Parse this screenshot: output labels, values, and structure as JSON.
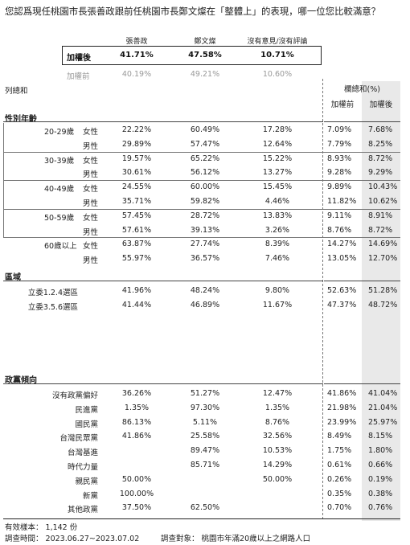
{
  "question": "您認爲現任桃園市長張善政跟前任桃園市長鄭文燦在「整體上」的表現，哪一位您比較滿意？",
  "columns": [
    "張善政",
    "鄭文燦",
    "沒有意見/沒有評論"
  ],
  "weighted": {
    "label": "加權後",
    "values": [
      "41.71%",
      "47.58%",
      "10.71%"
    ]
  },
  "unweighted": {
    "label": "加權前",
    "values": [
      "40.19%",
      "49.21%",
      "10.60%"
    ]
  },
  "row_total_label": "列總和",
  "side_header": "欄總和(%)",
  "side_cols": [
    "加權前",
    "加權後"
  ],
  "sections": {
    "gender_age": "性別年齡",
    "region": "區域",
    "party": "政黨傾向"
  },
  "age_rows": [
    {
      "age": "20-29歲",
      "sex": "女性",
      "v": [
        "22.22%",
        "60.49%",
        "17.28%"
      ],
      "s": [
        "7.09%",
        "7.68%"
      ]
    },
    {
      "age": "",
      "sex": "男性",
      "v": [
        "29.89%",
        "57.47%",
        "12.64%"
      ],
      "s": [
        "7.79%",
        "8.25%"
      ]
    },
    {
      "age": "30-39歲",
      "sex": "女性",
      "v": [
        "19.57%",
        "65.22%",
        "15.22%"
      ],
      "s": [
        "8.93%",
        "8.72%"
      ]
    },
    {
      "age": "",
      "sex": "男性",
      "v": [
        "30.61%",
        "56.12%",
        "13.27%"
      ],
      "s": [
        "9.28%",
        "9.29%"
      ]
    },
    {
      "age": "40-49歲",
      "sex": "女性",
      "v": [
        "24.55%",
        "60.00%",
        "15.45%"
      ],
      "s": [
        "9.89%",
        "10.43%"
      ]
    },
    {
      "age": "",
      "sex": "男性",
      "v": [
        "35.71%",
        "59.82%",
        "4.46%"
      ],
      "s": [
        "11.82%",
        "10.62%"
      ]
    },
    {
      "age": "50-59歲",
      "sex": "女性",
      "v": [
        "57.45%",
        "28.72%",
        "13.83%"
      ],
      "s": [
        "9.11%",
        "8.91%"
      ]
    },
    {
      "age": "",
      "sex": "男性",
      "v": [
        "57.61%",
        "39.13%",
        "3.26%"
      ],
      "s": [
        "8.76%",
        "8.72%"
      ]
    },
    {
      "age": "60歲以上",
      "sex": "女性",
      "v": [
        "63.87%",
        "27.74%",
        "8.39%"
      ],
      "s": [
        "14.27%",
        "14.69%"
      ]
    },
    {
      "age": "",
      "sex": "男性",
      "v": [
        "55.97%",
        "36.57%",
        "7.46%"
      ],
      "s": [
        "13.05%",
        "12.70%"
      ]
    }
  ],
  "region_rows": [
    {
      "name": "立委1.2.4選區",
      "v": [
        "41.96%",
        "48.24%",
        "9.80%"
      ],
      "s": [
        "52.63%",
        "51.28%"
      ]
    },
    {
      "name": "立委3.5.6選區",
      "v": [
        "41.44%",
        "46.89%",
        "11.67%"
      ],
      "s": [
        "47.37%",
        "48.72%"
      ]
    }
  ],
  "party_rows": [
    {
      "name": "沒有政黨偏好",
      "v": [
        "36.26%",
        "51.27%",
        "12.47%"
      ],
      "s": [
        "41.86%",
        "41.04%"
      ]
    },
    {
      "name": "民進黨",
      "v": [
        "1.35%",
        "97.30%",
        "1.35%"
      ],
      "s": [
        "21.98%",
        "21.04%"
      ]
    },
    {
      "name": "國民黨",
      "v": [
        "86.13%",
        "5.11%",
        "8.76%"
      ],
      "s": [
        "23.99%",
        "25.97%"
      ]
    },
    {
      "name": "台灣民眾黨",
      "v": [
        "41.86%",
        "25.58%",
        "32.56%"
      ],
      "s": [
        "8.49%",
        "8.15%"
      ]
    },
    {
      "name": "台灣基進",
      "v": [
        "",
        "89.47%",
        "10.53%"
      ],
      "s": [
        "1.75%",
        "1.80%"
      ]
    },
    {
      "name": "時代力量",
      "v": [
        "",
        "85.71%",
        "14.29%"
      ],
      "s": [
        "0.61%",
        "0.66%"
      ]
    },
    {
      "name": "親民黨",
      "v": [
        "50.00%",
        "",
        "50.00%"
      ],
      "s": [
        "0.26%",
        "0.19%"
      ]
    },
    {
      "name": "新黨",
      "v": [
        "100.00%",
        "",
        ""
      ],
      "s": [
        "0.35%",
        "0.38%"
      ]
    },
    {
      "name": "其他政黨",
      "v": [
        "37.50%",
        "62.50%",
        ""
      ],
      "s": [
        "0.70%",
        "0.76%"
      ]
    }
  ],
  "footer": {
    "sample": "有效樣本： 1,142 份",
    "period": "調查時間： 2023.06.27~2023.07.02",
    "target": "調查對象： 桃園市年滿20歲以上之網路人口"
  }
}
